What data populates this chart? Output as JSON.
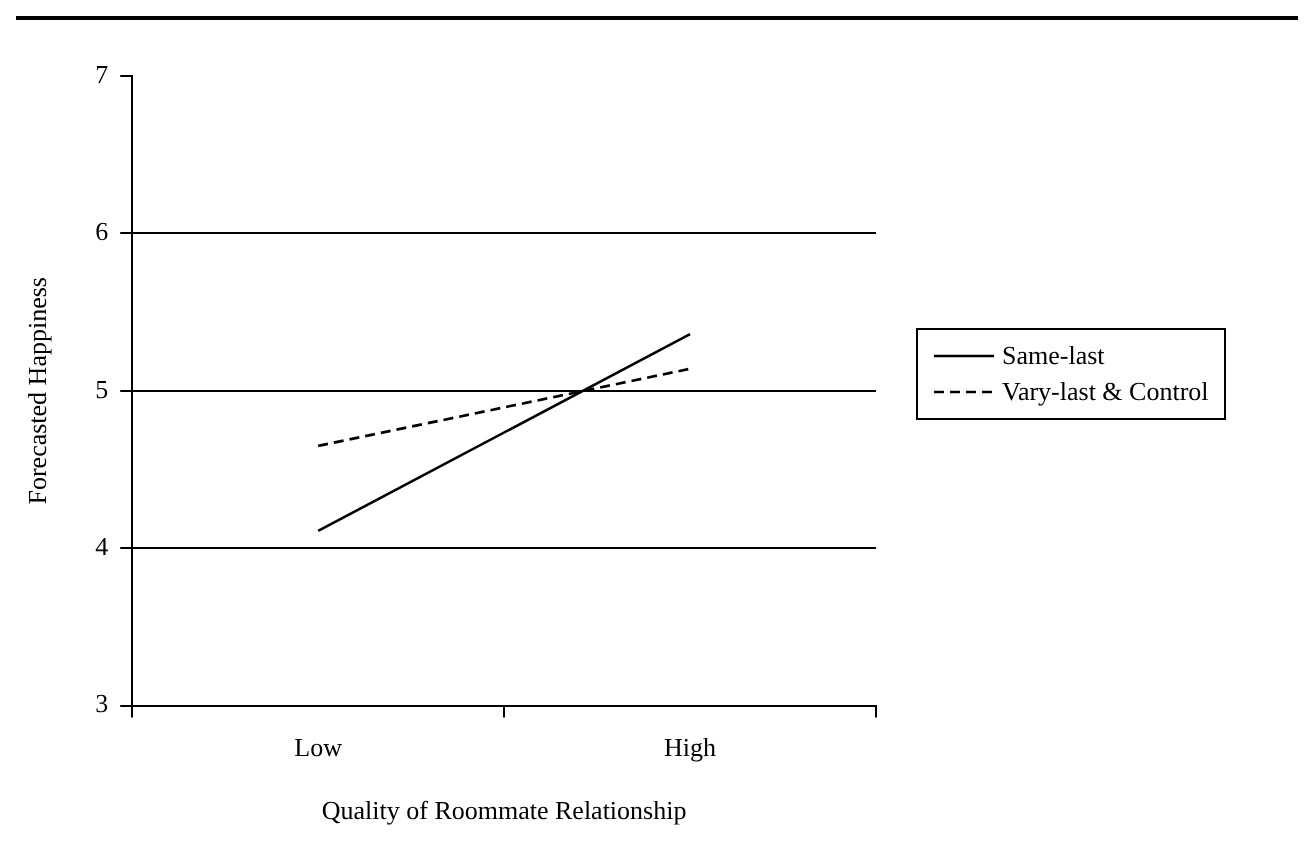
{
  "chart_data": {
    "type": "line",
    "xlabel": "Quality of Roommate Relationship",
    "ylabel": "Forecasted Happiness",
    "categories": [
      "Low",
      "High"
    ],
    "series": [
      {
        "name": "Same-last",
        "color": "#000000",
        "values": [
          4.11,
          5.36
        ],
        "line_style": "solid"
      },
      {
        "name": "Vary-last & Control",
        "color": "#000000",
        "values": [
          4.65,
          5.14
        ],
        "line_style": "dashed"
      }
    ],
    "ylim": [
      3,
      7
    ],
    "yticks": [
      3,
      4,
      5,
      6,
      7
    ],
    "grid": "y",
    "legend": "right",
    "marker": "none"
  }
}
